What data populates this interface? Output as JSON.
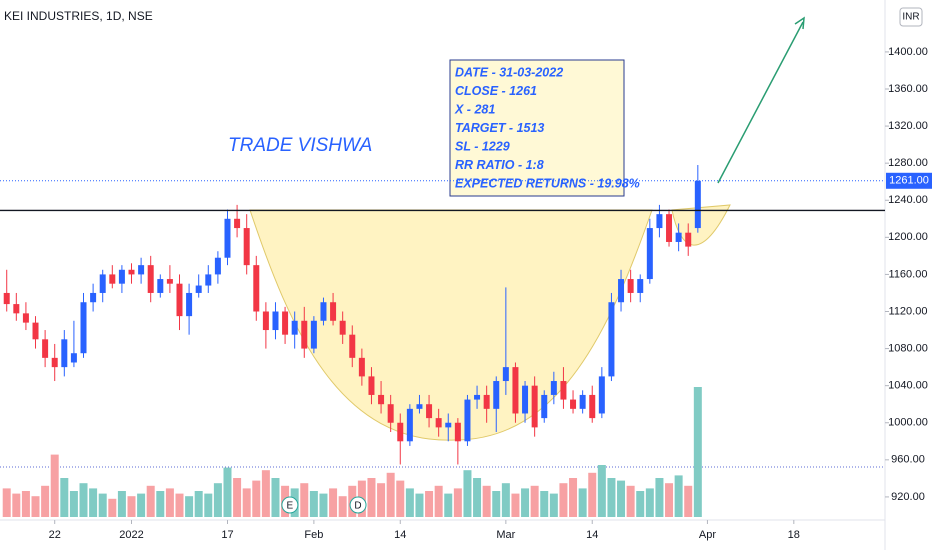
{
  "chart_data": {
    "type": "candlestick",
    "title": "KEI INDUSTRIES, 1D, NSE",
    "currency": "INR",
    "watermark": "TRADE VISHWA",
    "annotation_lines": [
      "DATE - 31-03-2022",
      "CLOSE - 1261",
      "X - 281",
      "TARGET - 1513",
      "SL - 1229",
      "RR RATIO - 1:8",
      "EXPECTED RETURNS - 19.98%"
    ],
    "x": [
      -5,
      -4,
      -3,
      -2,
      -1,
      0,
      1,
      2,
      3,
      4,
      5,
      6,
      7,
      8,
      9,
      10,
      11,
      12,
      13,
      14,
      15,
      16,
      17,
      18,
      19,
      20,
      21,
      22,
      23,
      24,
      25,
      26,
      27,
      28,
      29,
      30,
      31,
      32,
      33,
      34,
      35,
      36,
      37,
      38,
      39,
      40,
      41,
      42,
      43,
      44,
      45,
      46,
      47,
      48,
      49,
      50,
      51,
      52,
      53,
      54,
      55,
      56,
      57,
      58,
      59,
      60,
      61,
      62,
      63,
      64,
      65,
      66,
      67
    ],
    "open": [
      1140,
      1128,
      1118,
      1108,
      1090,
      1070,
      1060,
      1065,
      1075,
      1130,
      1140,
      1160,
      1150,
      1165,
      1160,
      1170,
      1140,
      1155,
      1150,
      1115,
      1140,
      1148,
      1160,
      1178,
      1220,
      1210,
      1170,
      1120,
      1100,
      1120,
      1095,
      1110,
      1080,
      1110,
      1130,
      1110,
      1095,
      1070,
      1050,
      1030,
      1020,
      1000,
      980,
      1015,
      1020,
      1005,
      995,
      1000,
      980,
      1025,
      1030,
      1015,
      1045,
      1060,
      1010,
      1040,
      1005,
      1030,
      1045,
      1025,
      1015,
      1030,
      1010,
      1050,
      1130,
      1155,
      1140,
      1155,
      1210,
      1225,
      1195,
      1205,
      1210
    ],
    "high": [
      1165,
      1140,
      1130,
      1115,
      1100,
      1085,
      1100,
      1110,
      1140,
      1150,
      1165,
      1170,
      1170,
      1172,
      1178,
      1180,
      1160,
      1170,
      1160,
      1150,
      1160,
      1170,
      1185,
      1230,
      1235,
      1225,
      1180,
      1130,
      1130,
      1125,
      1120,
      1125,
      1115,
      1135,
      1140,
      1120,
      1105,
      1080,
      1060,
      1045,
      1030,
      1010,
      1020,
      1030,
      1030,
      1015,
      1010,
      1005,
      1030,
      1040,
      1040,
      1050,
      1146,
      1065,
      1045,
      1050,
      1035,
      1055,
      1060,
      1035,
      1035,
      1040,
      1060,
      1140,
      1165,
      1165,
      1160,
      1220,
      1235,
      1230,
      1215,
      1215,
      1278
    ],
    "low": [
      1120,
      1110,
      1100,
      1080,
      1060,
      1045,
      1050,
      1060,
      1070,
      1120,
      1130,
      1145,
      1140,
      1150,
      1150,
      1130,
      1135,
      1140,
      1100,
      1095,
      1135,
      1140,
      1150,
      1170,
      1200,
      1160,
      1110,
      1080,
      1090,
      1085,
      1080,
      1070,
      1075,
      1105,
      1105,
      1085,
      1060,
      1040,
      1020,
      1010,
      990,
      955,
      975,
      1010,
      995,
      985,
      980,
      955,
      975,
      1015,
      1000,
      990,
      1030,
      1000,
      1000,
      985,
      1000,
      1020,
      1015,
      1010,
      1010,
      1000,
      1005,
      1045,
      1120,
      1130,
      1130,
      1150,
      1200,
      1190,
      1185,
      1180,
      1205
    ],
    "close": [
      1128,
      1118,
      1108,
      1090,
      1070,
      1060,
      1090,
      1075,
      1130,
      1140,
      1160,
      1150,
      1165,
      1160,
      1170,
      1140,
      1155,
      1150,
      1115,
      1140,
      1148,
      1160,
      1178,
      1220,
      1210,
      1170,
      1120,
      1100,
      1120,
      1095,
      1110,
      1080,
      1110,
      1130,
      1110,
      1095,
      1070,
      1050,
      1030,
      1020,
      1000,
      980,
      1015,
      1020,
      1005,
      995,
      1000,
      980,
      1025,
      1030,
      1015,
      1045,
      1060,
      1010,
      1040,
      995,
      1030,
      1045,
      1025,
      1015,
      1030,
      1005,
      1050,
      1130,
      1155,
      1140,
      1155,
      1210,
      1225,
      1195,
      1205,
      1190,
      1261
    ],
    "volume": [
      22,
      18,
      20,
      16,
      24,
      48,
      30,
      20,
      26,
      22,
      18,
      14,
      20,
      16,
      18,
      24,
      20,
      22,
      18,
      16,
      20,
      18,
      26,
      38,
      30,
      22,
      28,
      36,
      30,
      24,
      22,
      26,
      20,
      18,
      22,
      16,
      24,
      28,
      30,
      26,
      34,
      28,
      22,
      18,
      20,
      24,
      18,
      22,
      36,
      30,
      24,
      20,
      26,
      18,
      22,
      24,
      20,
      18,
      26,
      30,
      22,
      34,
      40,
      30,
      28,
      24,
      20,
      22,
      30,
      26,
      32,
      24,
      100
    ],
    "up_color": "#2962ff",
    "down_color": "#f23645",
    "volume_up_color": "#80cbc4",
    "volume_down_color": "#f7a1a3",
    "support_line": 1229,
    "last_price": 1261,
    "last_price_label": "1261.00",
    "events": [
      {
        "x": 24.5,
        "label": "E"
      },
      {
        "x": 31.6,
        "label": "D"
      }
    ],
    "xlim": [
      -5.7,
      86.5
    ],
    "ylim": [
      880,
      1456
    ],
    "xticks": [
      {
        "value": 0,
        "label": "22"
      },
      {
        "value": 8,
        "label": "2022"
      },
      {
        "value": 18,
        "label": "17"
      },
      {
        "value": 27,
        "label": "Feb"
      },
      {
        "value": 36,
        "label": "14"
      },
      {
        "value": 47,
        "label": "Mar"
      },
      {
        "value": 56,
        "label": "14"
      },
      {
        "value": 68,
        "label": "Apr"
      },
      {
        "value": 77,
        "label": "18"
      }
    ],
    "yticks": [
      {
        "value": 920,
        "label": "920.00"
      },
      {
        "value": 960,
        "label": "960.00"
      },
      {
        "value": 1000,
        "label": "1000.00"
      },
      {
        "value": 1040,
        "label": "1040.00"
      },
      {
        "value": 1080,
        "label": "1080.00"
      },
      {
        "value": 1120,
        "label": "1120.00"
      },
      {
        "value": 1160,
        "label": "1160.00"
      },
      {
        "value": 1200,
        "label": "1200.00"
      },
      {
        "value": 1240,
        "label": "1240.00"
      },
      {
        "value": 1280,
        "label": "1280.00"
      },
      {
        "value": 1320,
        "label": "1320.00"
      },
      {
        "value": 1360,
        "label": "1360.00"
      },
      {
        "value": 1400,
        "label": "1400.00"
      }
    ]
  }
}
